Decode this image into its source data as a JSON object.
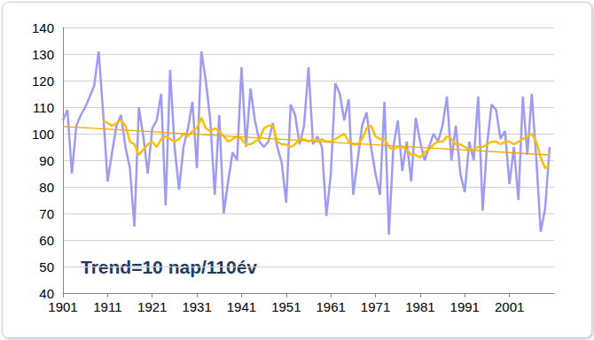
{
  "chart_data": {
    "type": "line",
    "annotations": [
      "Trend=10 nap/110év"
    ],
    "x": [
      1901,
      1902,
      1903,
      1904,
      1905,
      1906,
      1907,
      1908,
      1909,
      1910,
      1911,
      1912,
      1913,
      1914,
      1915,
      1916,
      1917,
      1918,
      1919,
      1920,
      1921,
      1922,
      1923,
      1924,
      1925,
      1926,
      1927,
      1928,
      1929,
      1930,
      1931,
      1932,
      1933,
      1934,
      1935,
      1936,
      1937,
      1938,
      1939,
      1940,
      1941,
      1942,
      1943,
      1944,
      1945,
      1946,
      1947,
      1948,
      1949,
      1950,
      1951,
      1952,
      1953,
      1954,
      1955,
      1956,
      1957,
      1958,
      1959,
      1960,
      1961,
      1962,
      1963,
      1964,
      1965,
      1966,
      1967,
      1968,
      1969,
      1970,
      1971,
      1972,
      1973,
      1974,
      1975,
      1976,
      1977,
      1978,
      1979,
      1980,
      1981,
      1982,
      1983,
      1984,
      1985,
      1986,
      1987,
      1988,
      1989,
      1990,
      1991,
      1992,
      1993,
      1994,
      1995,
      1996,
      1997,
      1998,
      1999,
      2000,
      2001,
      2002,
      2003,
      2004,
      2005,
      2006,
      2007,
      2008,
      2009,
      2010
    ],
    "series": [
      {
        "color": "#9d9cf2",
        "line_style": "solid",
        "values": [
          105,
          109,
          85,
          103,
          107,
          110,
          114,
          118,
          131,
          108,
          82,
          93,
          103,
          107,
          95,
          87,
          65,
          110,
          99,
          85,
          102,
          105,
          115,
          73,
          124,
          95,
          79,
          95,
          102,
          112,
          87,
          131,
          120,
          105,
          77,
          107,
          70,
          82,
          93,
          90,
          125,
          95,
          117,
          105,
          97,
          95,
          97,
          104,
          95,
          89,
          74,
          111,
          107,
          96,
          103,
          125,
          96,
          99,
          95,
          69,
          85,
          119,
          115,
          105,
          113,
          77,
          90,
          103,
          108,
          95,
          85,
          77,
          112,
          62,
          95,
          105,
          86,
          97,
          82,
          106,
          97,
          90,
          95,
          100,
          97,
          103,
          114,
          90,
          103,
          85,
          78,
          97,
          90,
          114,
          71,
          96,
          111,
          109,
          98,
          101,
          81,
          95,
          75,
          114,
          92,
          115,
          91,
          63,
          72,
          95
        ]
      },
      {
        "color": "#ffbf00",
        "line_style": "solid",
        "values": [
          null,
          null,
          null,
          null,
          null,
          null,
          null,
          null,
          null,
          105,
          104,
          103,
          104,
          105,
          103,
          97,
          96,
          92,
          94,
          96,
          97,
          95,
          98,
          99,
          98,
          97,
          98,
          100,
          99,
          101,
          102,
          106,
          102,
          101,
          102,
          101,
          99,
          97,
          98,
          99,
          98,
          96,
          96,
          97,
          98,
          102,
          103,
          103,
          97,
          96,
          96,
          95,
          96,
          98,
          98,
          97,
          98,
          97,
          98,
          97,
          97,
          98,
          99,
          100,
          97,
          96,
          96,
          98,
          102,
          103,
          99,
          98,
          98,
          95,
          94,
          95,
          95,
          94,
          92,
          92,
          91,
          93,
          94,
          96,
          97,
          97,
          99,
          98,
          96,
          96,
          95,
          94,
          94,
          95,
          95,
          96,
          97,
          97,
          96,
          97,
          97,
          96,
          97,
          98,
          99,
          100,
          97,
          91,
          87,
          88
        ]
      },
      {
        "color": "#f5a800",
        "line_style": "thin",
        "values": [
          102.7,
          null,
          null,
          null,
          null,
          null,
          null,
          null,
          null,
          null,
          null,
          null,
          null,
          null,
          null,
          null,
          null,
          null,
          null,
          null,
          null,
          null,
          null,
          null,
          null,
          null,
          null,
          null,
          null,
          null,
          null,
          null,
          null,
          null,
          null,
          null,
          null,
          null,
          null,
          null,
          null,
          null,
          null,
          null,
          null,
          null,
          null,
          null,
          null,
          null,
          null,
          null,
          null,
          null,
          null,
          null,
          null,
          null,
          null,
          null,
          null,
          null,
          null,
          null,
          null,
          null,
          null,
          null,
          null,
          null,
          null,
          null,
          null,
          null,
          null,
          null,
          null,
          null,
          null,
          null,
          null,
          null,
          null,
          null,
          null,
          null,
          null,
          null,
          null,
          null,
          null,
          null,
          null,
          null,
          null,
          null,
          null,
          null,
          null,
          null,
          null,
          null,
          null,
          null,
          null,
          null,
          null,
          null,
          null,
          92
        ]
      }
    ],
    "xlim": [
      1901,
      2011
    ],
    "xticks": [
      1901,
      1911,
      1921,
      1931,
      1941,
      1951,
      1961,
      1971,
      1981,
      1991,
      2001
    ],
    "ylim": [
      40,
      140
    ],
    "yticks": [
      40,
      50,
      60,
      70,
      80,
      90,
      100,
      110,
      120,
      130,
      140
    ],
    "grid": true
  }
}
